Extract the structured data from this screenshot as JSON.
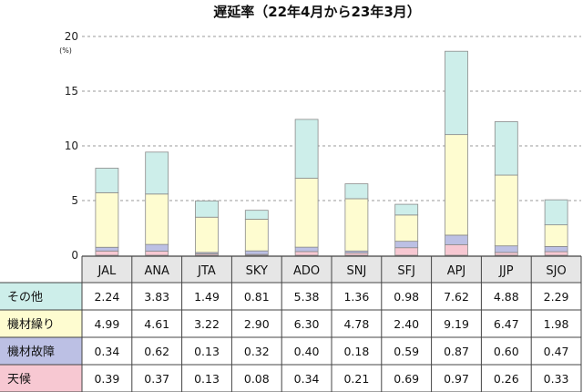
{
  "chart_data": {
    "type": "bar",
    "stacked": true,
    "title": "遅延率（22年4月から23年3月）",
    "yunit": "(%)",
    "ylim": [
      0,
      20
    ],
    "yticks": [
      0,
      5,
      10,
      15,
      20
    ],
    "grid": true,
    "categories": [
      "JAL",
      "ANA",
      "JTA",
      "SKY",
      "ADO",
      "SNJ",
      "SFJ",
      "APJ",
      "JJP",
      "SJO"
    ],
    "series": [
      {
        "name": "天候",
        "color": "#f7c8d2",
        "values": [
          0.39,
          0.37,
          0.13,
          0.08,
          0.34,
          0.21,
          0.69,
          0.97,
          0.26,
          0.33
        ]
      },
      {
        "name": "機材故障",
        "color": "#bcc0e4",
        "values": [
          0.34,
          0.62,
          0.13,
          0.32,
          0.4,
          0.18,
          0.59,
          0.87,
          0.6,
          0.47
        ]
      },
      {
        "name": "機材繰り",
        "color": "#fefcd0",
        "values": [
          4.99,
          4.61,
          3.22,
          2.9,
          6.3,
          4.78,
          2.4,
          9.19,
          6.47,
          1.98
        ]
      },
      {
        "name": "その他",
        "color": "#cdeeea",
        "values": [
          2.24,
          3.83,
          1.49,
          0.81,
          5.38,
          1.36,
          0.98,
          7.62,
          4.88,
          2.29
        ]
      }
    ],
    "table_rows_order": [
      "その他",
      "機材繰り",
      "機材故障",
      "天候"
    ]
  }
}
